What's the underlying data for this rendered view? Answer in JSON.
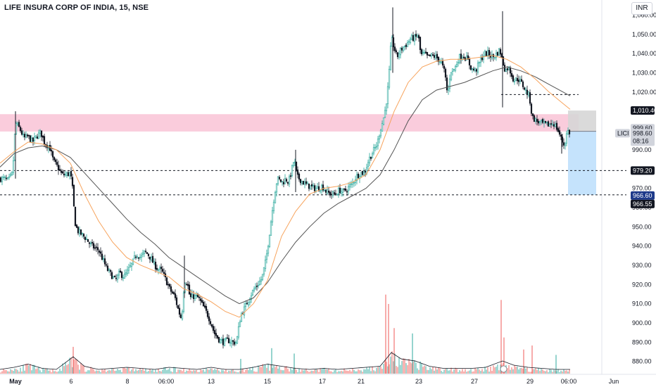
{
  "header": {
    "title": "LIFE INSURA CORP OF INDIA, 15, NSE",
    "currency": "INR"
  },
  "price_tags": {
    "zone_top": "1,010.40",
    "current_top": "999.60",
    "symbol": "LICI",
    "last_price": "998.60",
    "countdown": "08:16",
    "level_979": "979.20",
    "level_966_6": "966.60",
    "level_966_55": "966.55"
  },
  "colors": {
    "up": "#26a69a",
    "down": "#131722",
    "ma_fast": "#f7a35c",
    "ma_slow": "#555555",
    "zone": "#f8bbd0",
    "target": "#bbdefb",
    "stop": "#d6d6d6",
    "vol_up": "#26a69a",
    "vol_down": "#ef5350"
  },
  "chart_data": {
    "type": "candlestick",
    "title": "LIFE INSURA CORP OF INDIA, 15, NSE",
    "y_range": [
      875,
      1065
    ],
    "y_ticks": [
      "1,060.00",
      "1,050.00",
      "1,040.00",
      "1,030.00",
      "1,020.00",
      "990.00",
      "970.00",
      "960.00",
      "950.00",
      "940.00",
      "930.00",
      "920.00",
      "910.00",
      "900.00",
      "890.00",
      "880.00"
    ],
    "x_ticks": [
      "May",
      "6",
      "8",
      "06:00",
      "13",
      "15",
      "17",
      "21",
      "23",
      "27",
      "29",
      "06:00",
      "Jun"
    ],
    "close_path": [
      [
        0,
        975
      ],
      [
        6,
        975
      ],
      [
        12,
        974
      ],
      [
        18,
        978
      ],
      [
        22,
        1004
      ],
      [
        28,
        1001
      ],
      [
        34,
        996
      ],
      [
        40,
        997
      ],
      [
        46,
        994
      ],
      [
        52,
        997
      ],
      [
        58,
        999
      ],
      [
        64,
        993
      ],
      [
        70,
        992
      ],
      [
        76,
        984
      ],
      [
        82,
        981
      ],
      [
        88,
        977
      ],
      [
        94,
        977
      ],
      [
        100,
        978
      ],
      [
        104,
        967
      ],
      [
        106,
        953
      ],
      [
        110,
        948
      ],
      [
        116,
        946
      ],
      [
        122,
        944
      ],
      [
        128,
        941
      ],
      [
        134,
        939
      ],
      [
        140,
        938
      ],
      [
        146,
        933
      ],
      [
        152,
        928
      ],
      [
        158,
        925
      ],
      [
        164,
        922
      ],
      [
        170,
        926
      ],
      [
        176,
        924
      ],
      [
        182,
        927
      ],
      [
        188,
        931
      ],
      [
        194,
        936
      ],
      [
        200,
        934
      ],
      [
        206,
        937
      ],
      [
        212,
        935
      ],
      [
        218,
        931
      ],
      [
        224,
        928
      ],
      [
        230,
        927
      ],
      [
        236,
        922
      ],
      [
        242,
        917
      ],
      [
        248,
        914
      ],
      [
        254,
        906
      ],
      [
        258,
        902
      ],
      [
        262,
        922
      ],
      [
        266,
        921
      ],
      [
        270,
        913
      ],
      [
        276,
        914
      ],
      [
        282,
        913
      ],
      [
        288,
        909
      ],
      [
        294,
        905
      ],
      [
        300,
        900
      ],
      [
        304,
        895
      ],
      [
        308,
        893
      ],
      [
        312,
        891
      ],
      [
        318,
        890
      ],
      [
        324,
        891
      ],
      [
        330,
        890
      ],
      [
        336,
        890
      ],
      [
        342,
        904
      ],
      [
        348,
        908
      ],
      [
        354,
        913
      ],
      [
        360,
        917
      ],
      [
        366,
        920
      ],
      [
        372,
        923
      ],
      [
        378,
        933
      ],
      [
        382,
        944
      ],
      [
        386,
        956
      ],
      [
        390,
        967
      ],
      [
        394,
        975
      ],
      [
        398,
        974
      ],
      [
        402,
        973
      ],
      [
        406,
        975
      ],
      [
        410,
        973
      ],
      [
        414,
        979
      ],
      [
        418,
        985
      ],
      [
        422,
        976
      ],
      [
        428,
        974
      ],
      [
        434,
        972
      ],
      [
        440,
        971
      ],
      [
        446,
        970
      ],
      [
        452,
        970
      ],
      [
        458,
        971
      ],
      [
        464,
        968
      ],
      [
        470,
        967
      ],
      [
        476,
        967
      ],
      [
        482,
        969
      ],
      [
        488,
        968
      ],
      [
        494,
        970
      ],
      [
        500,
        972
      ],
      [
        506,
        976
      ],
      [
        512,
        978
      ],
      [
        518,
        978
      ],
      [
        524,
        985
      ],
      [
        530,
        989
      ],
      [
        536,
        993
      ],
      [
        540,
        1000
      ],
      [
        544,
        1005
      ],
      [
        548,
        1012
      ],
      [
        552,
        1025
      ],
      [
        556,
        1048
      ],
      [
        560,
        1043
      ],
      [
        564,
        1038
      ],
      [
        568,
        1041
      ],
      [
        572,
        1043
      ],
      [
        578,
        1045
      ],
      [
        584,
        1048
      ],
      [
        590,
        1048
      ],
      [
        594,
        1050
      ],
      [
        598,
        1039
      ],
      [
        602,
        1040
      ],
      [
        608,
        1038
      ],
      [
        614,
        1039
      ],
      [
        620,
        1038
      ],
      [
        626,
        1036
      ],
      [
        632,
        1030
      ],
      [
        636,
        1018
      ],
      [
        640,
        1031
      ],
      [
        646,
        1032
      ],
      [
        652,
        1038
      ],
      [
        658,
        1039
      ],
      [
        664,
        1037
      ],
      [
        670,
        1032
      ],
      [
        676,
        1031
      ],
      [
        682,
        1036
      ],
      [
        688,
        1040
      ],
      [
        694,
        1040
      ],
      [
        700,
        1038
      ],
      [
        706,
        1040
      ],
      [
        710,
        1042
      ],
      [
        714,
        1036
      ],
      [
        718,
        1031
      ],
      [
        722,
        1033
      ],
      [
        726,
        1030
      ],
      [
        730,
        1026
      ],
      [
        736,
        1027
      ],
      [
        742,
        1024
      ],
      [
        748,
        1020
      ],
      [
        752,
        1018
      ],
      [
        756,
        1007
      ],
      [
        762,
        1005
      ],
      [
        768,
        1004
      ],
      [
        774,
        1003
      ],
      [
        780,
        1003
      ],
      [
        786,
        1004
      ],
      [
        790,
        1002
      ],
      [
        794,
        999
      ],
      [
        798,
        995
      ],
      [
        802,
        992
      ],
      [
        806,
        1000
      ],
      [
        810,
        998.6
      ]
    ],
    "ma_fast": [
      [
        0,
        983
      ],
      [
        20,
        989
      ],
      [
        40,
        994
      ],
      [
        60,
        993
      ],
      [
        80,
        990
      ],
      [
        100,
        983
      ],
      [
        120,
        967
      ],
      [
        140,
        953
      ],
      [
        160,
        942
      ],
      [
        180,
        934
      ],
      [
        200,
        930
      ],
      [
        220,
        927
      ],
      [
        240,
        924
      ],
      [
        260,
        918
      ],
      [
        280,
        915
      ],
      [
        300,
        911
      ],
      [
        320,
        906
      ],
      [
        340,
        903
      ],
      [
        360,
        910
      ],
      [
        380,
        922
      ],
      [
        400,
        945
      ],
      [
        420,
        958
      ],
      [
        440,
        967
      ],
      [
        460,
        970
      ],
      [
        480,
        971
      ],
      [
        500,
        973
      ],
      [
        520,
        977
      ],
      [
        540,
        990
      ],
      [
        560,
        1010
      ],
      [
        580,
        1025
      ],
      [
        600,
        1033
      ],
      [
        620,
        1036
      ],
      [
        640,
        1037
      ],
      [
        660,
        1037
      ],
      [
        680,
        1038
      ],
      [
        700,
        1039
      ],
      [
        720,
        1037
      ],
      [
        740,
        1033
      ],
      [
        760,
        1027
      ],
      [
        780,
        1020
      ],
      [
        800,
        1014
      ],
      [
        810,
        1011
      ]
    ],
    "ma_slow": [
      [
        0,
        981
      ],
      [
        20,
        988
      ],
      [
        40,
        991
      ],
      [
        60,
        992
      ],
      [
        80,
        990
      ],
      [
        100,
        986
      ],
      [
        120,
        978
      ],
      [
        140,
        970
      ],
      [
        160,
        962
      ],
      [
        180,
        954
      ],
      [
        200,
        947
      ],
      [
        220,
        941
      ],
      [
        240,
        934
      ],
      [
        260,
        929
      ],
      [
        280,
        924
      ],
      [
        300,
        919
      ],
      [
        320,
        914
      ],
      [
        340,
        910
      ],
      [
        360,
        913
      ],
      [
        380,
        921
      ],
      [
        400,
        932
      ],
      [
        420,
        942
      ],
      [
        440,
        950
      ],
      [
        460,
        957
      ],
      [
        480,
        962
      ],
      [
        500,
        966
      ],
      [
        520,
        970
      ],
      [
        540,
        977
      ],
      [
        560,
        990
      ],
      [
        580,
        1005
      ],
      [
        600,
        1016
      ],
      [
        620,
        1021
      ],
      [
        640,
        1023
      ],
      [
        660,
        1025
      ],
      [
        680,
        1028
      ],
      [
        700,
        1031
      ],
      [
        720,
        1033
      ],
      [
        740,
        1031
      ],
      [
        760,
        1028
      ],
      [
        780,
        1024
      ],
      [
        800,
        1020
      ],
      [
        810,
        1018
      ]
    ],
    "zones": {
      "supply": [
        999.5,
        1008.5
      ],
      "stop_box": [
        999.6,
        1010.4
      ],
      "target_box": [
        966.55,
        999.6
      ]
    },
    "levels": [
      1018.7,
      979.2,
      966.6
    ],
    "volume_path": [
      [
        0,
        4
      ],
      [
        20,
        6
      ],
      [
        40,
        9
      ],
      [
        60,
        5
      ],
      [
        80,
        4
      ],
      [
        104,
        16
      ],
      [
        120,
        7
      ],
      [
        140,
        4
      ],
      [
        160,
        5
      ],
      [
        180,
        6
      ],
      [
        200,
        5
      ],
      [
        220,
        4
      ],
      [
        240,
        6
      ],
      [
        260,
        5
      ],
      [
        280,
        4
      ],
      [
        300,
        6
      ],
      [
        320,
        4
      ],
      [
        340,
        4
      ],
      [
        360,
        6
      ],
      [
        380,
        9
      ],
      [
        400,
        7
      ],
      [
        420,
        5
      ],
      [
        440,
        4
      ],
      [
        460,
        5
      ],
      [
        480,
        4
      ],
      [
        500,
        5
      ],
      [
        520,
        6
      ],
      [
        540,
        7
      ],
      [
        556,
        20
      ],
      [
        570,
        14
      ],
      [
        590,
        12
      ],
      [
        610,
        7
      ],
      [
        630,
        5
      ],
      [
        650,
        5
      ],
      [
        670,
        5
      ],
      [
        690,
        6
      ],
      [
        714,
        12
      ],
      [
        730,
        8
      ],
      [
        750,
        6
      ],
      [
        770,
        5
      ],
      [
        790,
        4
      ],
      [
        810,
        4
      ]
    ],
    "volume_spikes": [
      [
        104,
        40
      ],
      [
        342,
        22
      ],
      [
        386,
        38
      ],
      [
        418,
        30
      ],
      [
        548,
        118
      ],
      [
        552,
        104
      ],
      [
        560,
        68
      ],
      [
        586,
        60
      ],
      [
        712,
        110
      ],
      [
        716,
        54
      ],
      [
        744,
        36
      ],
      [
        756,
        42
      ],
      [
        790,
        28
      ]
    ]
  }
}
